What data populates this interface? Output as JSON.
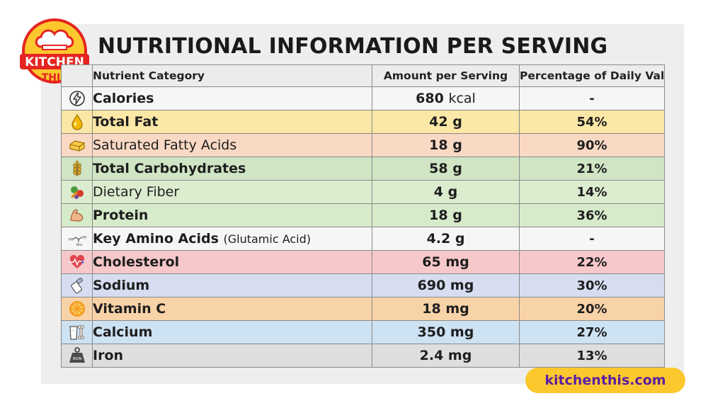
{
  "logo": {
    "line1": "KITCHEN",
    "line2": "THIS",
    "colors": {
      "red": "#e52521",
      "yellow": "#fdc82e"
    }
  },
  "title": "NUTRITIONAL INFORMATION PER SERVING",
  "table": {
    "headers": [
      "Nutrient Category",
      "Amount per Serving",
      "Percentage of Daily Value"
    ],
    "rows": [
      {
        "icon": "lightning-icon",
        "name": "Calories",
        "sub": "",
        "amount": "680",
        "unit": "kcal",
        "pct": "-",
        "bg": "#f6f6f6"
      },
      {
        "icon": "oil-drop-icon",
        "name": "Total Fat",
        "sub": "",
        "amount": "42 g",
        "unit": "",
        "pct": "54%",
        "bg": "#fbe7a6"
      },
      {
        "icon": "butter-icon",
        "name": "Saturated Fatty Acids",
        "sub": "",
        "amount": "18 g",
        "unit": "",
        "pct": "90%",
        "bg": "#f9d9c4"
      },
      {
        "icon": "wheat-icon",
        "name": "Total Carbohydrates",
        "sub": "",
        "amount": "58 g",
        "unit": "",
        "pct": "21%",
        "bg": "#cfe5c4"
      },
      {
        "icon": "vegetables-icon",
        "name": "Dietary Fiber",
        "sub": "",
        "amount": "4 g",
        "unit": "",
        "pct": "14%",
        "bg": "#dbeccf"
      },
      {
        "icon": "muscle-icon",
        "name": "Protein",
        "sub": "",
        "amount": "18 g",
        "unit": "",
        "pct": "36%",
        "bg": "#d6ebca"
      },
      {
        "icon": "molecule-icon",
        "name": "Key Amino Acids",
        "sub": "(Glutamic Acid)",
        "amount": "4.2 g",
        "unit": "",
        "pct": "-",
        "bg": "#f6f6f6"
      },
      {
        "icon": "heart-pulse-icon",
        "name": "Cholesterol",
        "sub": "",
        "amount": "65 mg",
        "unit": "",
        "pct": "22%",
        "bg": "#f7c8ca"
      },
      {
        "icon": "salt-shaker-icon",
        "name": "Sodium",
        "sub": "",
        "amount": "690 mg",
        "unit": "",
        "pct": "30%",
        "bg": "#d6ddf1"
      },
      {
        "icon": "orange-slice-icon",
        "name": "Vitamin C",
        "sub": "",
        "amount": "18 mg",
        "unit": "",
        "pct": "20%",
        "bg": "#f9d3a8"
      },
      {
        "icon": "milk-bone-icon",
        "name": "Calcium",
        "sub": "",
        "amount": "350 mg",
        "unit": "",
        "pct": "27%",
        "bg": "#cde2f3"
      },
      {
        "icon": "iron-weight-icon",
        "name": "Iron",
        "sub": "",
        "amount": "2.4 mg",
        "unit": "",
        "pct": "13%",
        "bg": "#dedede"
      }
    ]
  },
  "icon_text": {
    "molecule_left": "HO",
    "molecule_right": "OH",
    "molecule_bottom": "NH₂",
    "weight": "IRON"
  },
  "footer": {
    "site": "kitchenthis.com",
    "badge_color": "#fdc82e",
    "text_color": "#5a1fa3"
  }
}
